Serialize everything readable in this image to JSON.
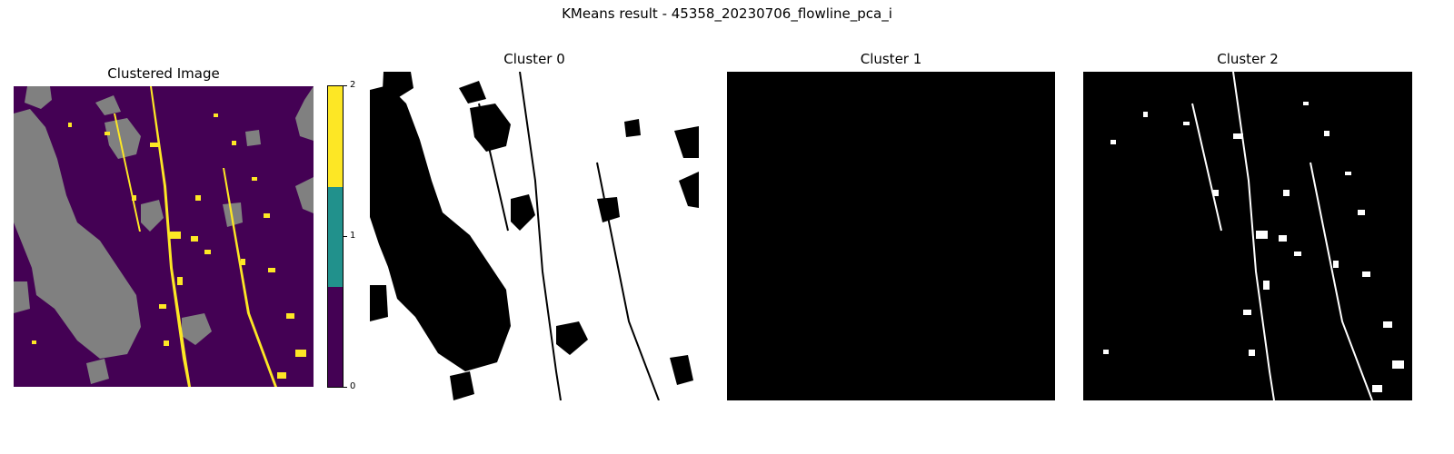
{
  "figure": {
    "suptitle": "KMeans result - 45358_20230706_flowline_pca_i"
  },
  "panels": [
    {
      "title": "Clustered Image"
    },
    {
      "title": "Cluster 0"
    },
    {
      "title": "Cluster 1"
    },
    {
      "title": "Cluster 2"
    }
  ],
  "colorbar": {
    "ticks": [
      "0",
      "1",
      "2"
    ],
    "colors": [
      "#fde725",
      "#21918c",
      "#440154"
    ]
  },
  "colors": {
    "background_class": "#440154",
    "masked_gray": "#808080",
    "yellow_class": "#fde725",
    "mask_on": "#ffffff",
    "mask_off": "#000000"
  }
}
